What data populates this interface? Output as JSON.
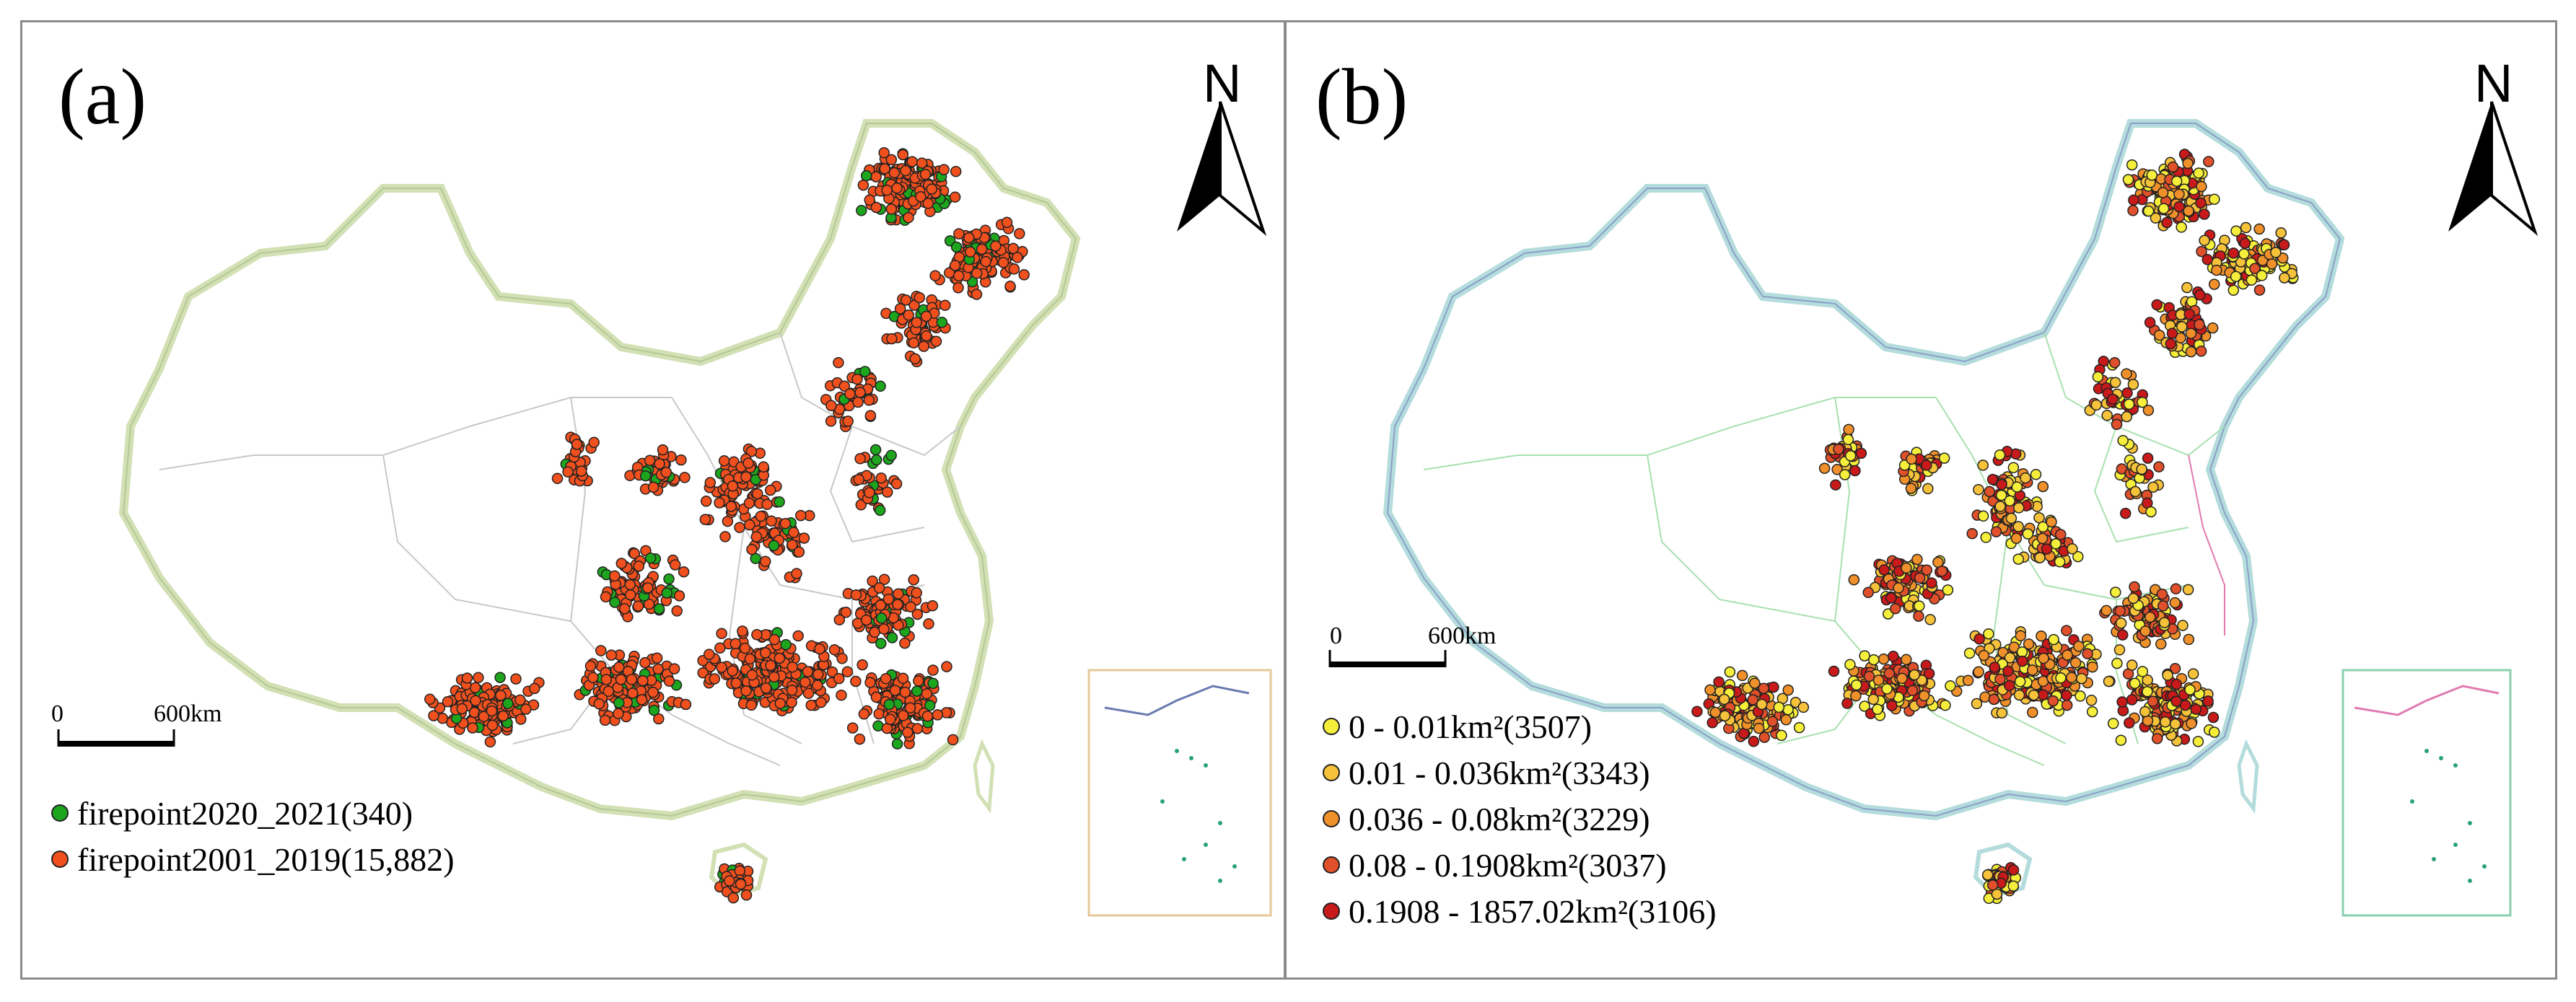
{
  "panels": [
    {
      "label": "(a)",
      "north": "N",
      "scale_zero": "0",
      "scale_dist": "600km",
      "province_color": "#c8c8c8",
      "legend": [
        {
          "label": "firepoint2020_2021(340)",
          "color": "#1ea51e"
        },
        {
          "label": "firepoint2001_2019(15,882)",
          "color": "#f0501e"
        }
      ]
    },
    {
      "label": "(b)",
      "north": "N",
      "scale_zero": "0",
      "scale_dist": "600km",
      "province_color": "#a8e0b0",
      "legend": [
        {
          "label": "0 - 0.01km²(3507)",
          "color": "#f5ee3a"
        },
        {
          "label": "0.01 - 0.036km²(3343)",
          "color": "#f5c23a"
        },
        {
          "label": "0.036 - 0.08km²(3229)",
          "color": "#f0902a"
        },
        {
          "label": "0.08 - 0.1908km²(3037)",
          "color": "#e0502a"
        },
        {
          "label": "0.1908 - 1857.02km²(3106)",
          "color": "#c81a1a"
        }
      ]
    }
  ]
}
